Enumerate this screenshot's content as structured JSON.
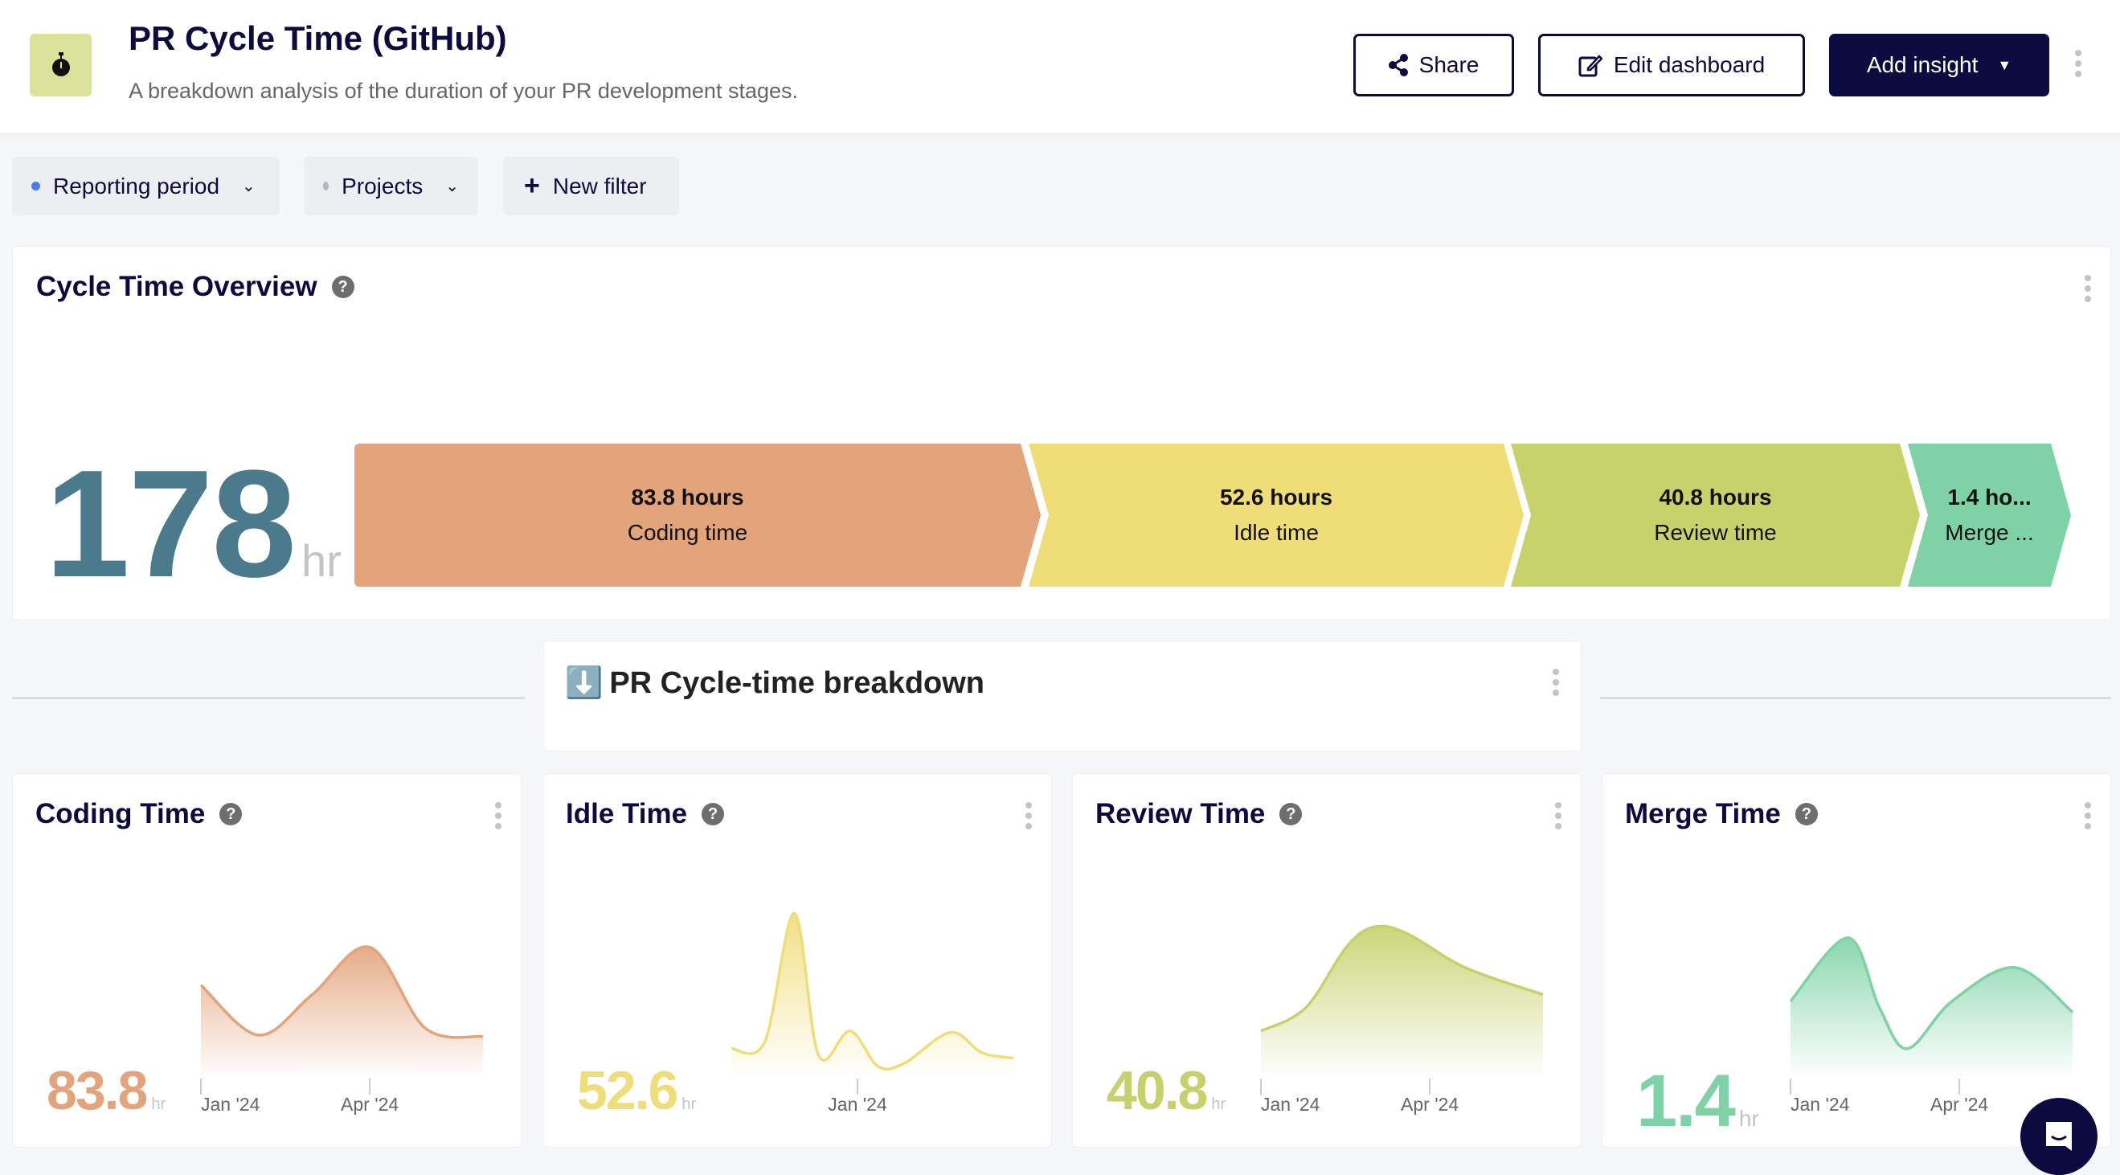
{
  "header": {
    "title": "PR Cycle Time (GitHub)",
    "subtitle": "A breakdown analysis of the duration of your PR development stages.",
    "logo_icon": "stopwatch-icon",
    "share_label": "Share",
    "edit_label": "Edit dashboard",
    "add_insight_label": "Add insight"
  },
  "filters": [
    {
      "label": "Reporting period",
      "dot_color": "#4a7cf0"
    },
    {
      "label": "Projects",
      "dot_color": "#b5b8bd"
    },
    {
      "label": "New filter"
    }
  ],
  "overview": {
    "title": "Cycle Time Overview",
    "help": "?",
    "total": "178",
    "unit": "hr",
    "total_color": "#4a7a8c",
    "segments": [
      {
        "value": "83.8 hours",
        "label": "Coding time",
        "color": "#e3a37b"
      },
      {
        "value": "52.6 hours",
        "label": "Idle time",
        "color": "#efdd78"
      },
      {
        "value": "40.8 hours",
        "label": "Review time",
        "color": "#c8d26b"
      },
      {
        "value": "1.4 ho...",
        "label": "Merge ...",
        "color": "#7fd2a5"
      }
    ]
  },
  "breakdown": {
    "emoji": "⬇️",
    "title": "PR Cycle-time breakdown"
  },
  "cards": [
    {
      "title": "Coding Time",
      "value": "83.8",
      "unit": "hr",
      "color": "#e3a37b"
    },
    {
      "title": "Idle Time",
      "value": "52.6",
      "unit": "hr",
      "color": "#efdd78"
    },
    {
      "title": "Review Time",
      "value": "40.8",
      "unit": "hr",
      "color": "#c5d16a"
    },
    {
      "title": "Merge Time",
      "value": "1.4",
      "unit": "hr",
      "color": "#7ed2a5"
    }
  ],
  "chart_data": [
    {
      "type": "area",
      "title": "Coding Time",
      "color": "#e3a37b",
      "ticks": [
        {
          "label": "Jan '24",
          "date": "2024-01-01"
        },
        {
          "label": "Apr '24",
          "date": "2024-04-01"
        }
      ],
      "points": [
        [
          "2024-01-01",
          62
        ],
        [
          "2024-02-01",
          25
        ],
        [
          "2024-03-01",
          55
        ],
        [
          "2024-04-01",
          90
        ],
        [
          "2024-05-01",
          30
        ],
        [
          "2024-06-01",
          24
        ]
      ]
    },
    {
      "type": "area",
      "title": "Idle Time",
      "color": "#efdd78",
      "ticks": [
        {
          "label": "Jan '24",
          "date": "2024-01-01"
        }
      ],
      "points": [
        [
          "2023-10-25",
          15
        ],
        [
          "2023-11-12",
          20
        ],
        [
          "2023-11-28",
          115
        ],
        [
          "2023-12-11",
          10
        ],
        [
          "2023-12-28",
          28
        ],
        [
          "2024-01-12",
          2
        ],
        [
          "2024-01-26",
          4
        ],
        [
          "2024-02-20",
          27
        ],
        [
          "2024-03-08",
          12
        ],
        [
          "2024-03-25",
          8
        ]
      ]
    },
    {
      "type": "area",
      "title": "Review Time",
      "color": "#c5d16a",
      "ticks": [
        {
          "label": "Jan '24",
          "date": "2024-01-01"
        },
        {
          "label": "Apr '24",
          "date": "2024-04-01"
        }
      ],
      "points": [
        [
          "2024-01-01",
          28
        ],
        [
          "2024-01-25",
          45
        ],
        [
          "2024-02-16",
          90
        ],
        [
          "2024-03-02",
          105
        ],
        [
          "2024-03-20",
          100
        ],
        [
          "2024-04-20",
          75
        ],
        [
          "2024-06-01",
          55
        ]
      ]
    },
    {
      "type": "area",
      "title": "Merge Time",
      "color": "#7ed2a5",
      "ticks": [
        {
          "label": "Jan '24",
          "date": "2024-01-01"
        },
        {
          "label": "Apr '24",
          "date": "2024-04-01"
        }
      ],
      "points": [
        [
          "2024-01-01",
          50
        ],
        [
          "2024-02-01",
          97
        ],
        [
          "2024-02-18",
          45
        ],
        [
          "2024-03-04",
          15
        ],
        [
          "2024-03-28",
          50
        ],
        [
          "2024-05-01",
          75
        ],
        [
          "2024-06-01",
          42
        ]
      ]
    }
  ]
}
